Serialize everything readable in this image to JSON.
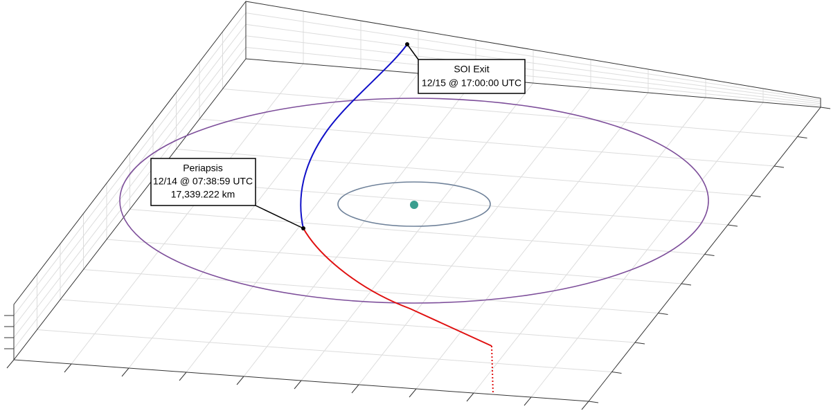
{
  "annotations": [
    {
      "lines": [
        "SOI Exit",
        "12/15 @ 17:00:00 UTC"
      ]
    },
    {
      "lines": [
        "Periapsis",
        "12/14 @ 07:38:59 UTC",
        "17,339.222 km"
      ]
    }
  ]
}
